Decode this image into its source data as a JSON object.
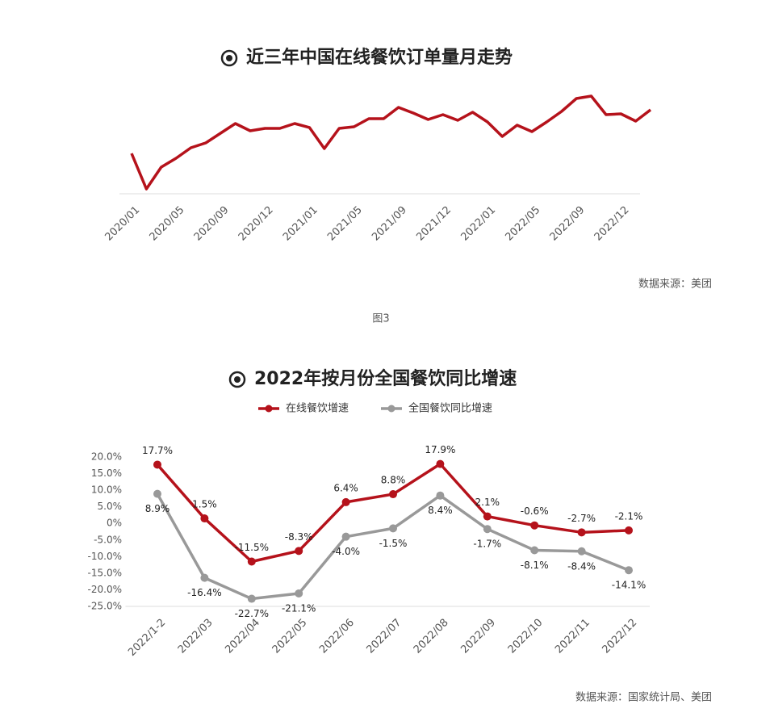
{
  "chart_data": [
    {
      "type": "line",
      "title": "近三年中国在线餐饮订单量月走势",
      "categories": [
        "2020/01",
        null,
        null,
        "2020/05",
        null,
        null,
        "2020/09",
        null,
        null,
        "2020/12",
        null,
        null,
        "2021/01",
        null,
        null,
        "2021/05",
        null,
        null,
        "2021/09",
        null,
        null,
        "2021/12",
        null,
        null,
        "2022/01",
        null,
        null,
        "2022/05",
        null,
        null,
        "2022/09",
        null,
        null,
        "2022/12",
        null,
        null
      ],
      "series": [
        {
          "color": "#b5121b",
          "values": [
            50,
            6,
            33,
            44,
            57,
            63,
            75,
            87,
            78,
            81,
            81,
            87,
            82,
            56,
            81,
            83,
            93,
            93,
            107,
            100,
            92,
            98,
            91,
            101,
            89,
            71,
            85,
            77,
            89,
            102,
            118,
            121,
            98,
            99,
            90,
            104
          ]
        }
      ],
      "ylim": [
        0,
        130
      ],
      "source": "数据来源：美团",
      "caption": "图3"
    },
    {
      "type": "line",
      "title": "2022年按月份全国餐饮同比增速",
      "categories": [
        "2022/1-2",
        "2022/03",
        "2022/04",
        "2022/05",
        "2022/06",
        "2022/07",
        "2022/08",
        "2022/09",
        "2022/10",
        "2022/11",
        "2022/12"
      ],
      "series": [
        {
          "name": "在线餐饮增速",
          "color": "#b5121b",
          "values": [
            17.7,
            1.5,
            -11.5,
            -8.3,
            6.4,
            8.8,
            17.9,
            2.1,
            -0.6,
            -2.7,
            -2.1
          ],
          "value_labels": [
            "17.7%",
            "1.5%",
            "-11.5%",
            "-8.3%",
            "6.4%",
            "8.8%",
            "17.9%",
            "2.1%",
            "-0.6%",
            "-2.7%",
            "-2.1%"
          ]
        },
        {
          "name": "全国餐饮同比增速",
          "color": "#999999",
          "values": [
            8.9,
            -16.4,
            -22.7,
            -21.1,
            -4.0,
            -1.5,
            8.4,
            -1.7,
            -8.1,
            -8.4,
            -14.1
          ],
          "value_labels": [
            "8.9%",
            "-16.4%",
            "-22.7%",
            "-21.1%",
            "-4.0%",
            "-1.5%",
            "8.4%",
            "-1.7%",
            "-8.1%",
            "-8.4%",
            "-14.1%"
          ]
        }
      ],
      "ylim": [
        -25,
        20
      ],
      "yticks": [
        {
          "value": 20,
          "label": "20.0%"
        },
        {
          "value": 15,
          "label": "15.0%"
        },
        {
          "value": 10,
          "label": "10.0%"
        },
        {
          "value": 5,
          "label": "5.0%"
        },
        {
          "value": 0,
          "label": "0%"
        },
        {
          "value": -5,
          "label": "-5.0%"
        },
        {
          "value": -10,
          "label": "-10.0%"
        },
        {
          "value": -15,
          "label": "-15.0%"
        },
        {
          "value": -20,
          "label": "-20.0%"
        },
        {
          "value": -25,
          "label": "-25.0%"
        }
      ],
      "legend": "top",
      "source": "数据来源：国家统计局、美团"
    }
  ]
}
